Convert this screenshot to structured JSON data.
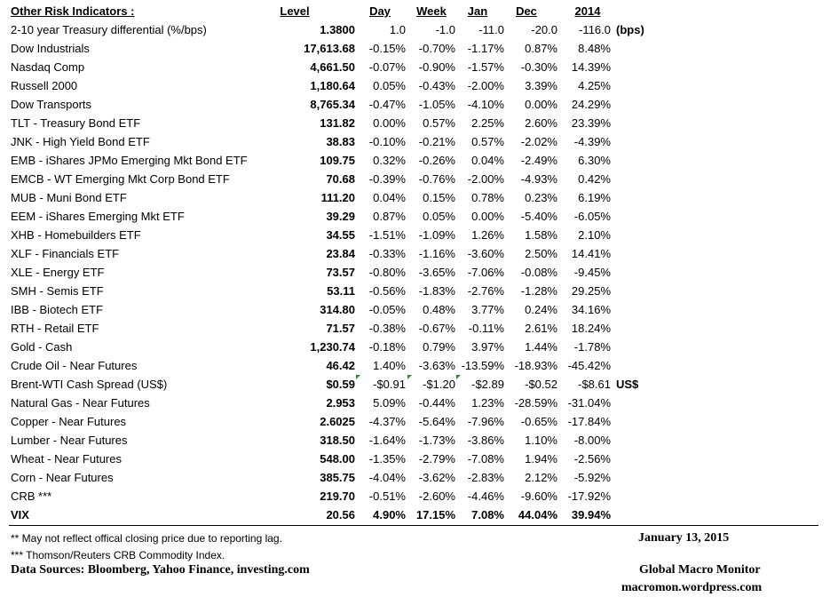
{
  "header": {
    "title": "Other Risk Indicators :",
    "columns": [
      "Level",
      "Day",
      "Week",
      "Jan",
      "Dec",
      "2014"
    ]
  },
  "table": {
    "rows": [
      {
        "name": "2-10 year Treasury differential (%/bps)",
        "cells": [
          "1.3800",
          "1.0",
          "-1.0",
          "-11.0",
          "-20.0",
          "-116.0"
        ],
        "unit": "(bps)"
      },
      {
        "name": "Dow Industrials",
        "cells": [
          "17,613.68",
          "-0.15%",
          "-0.70%",
          "-1.17%",
          "0.87%",
          "8.48%"
        ]
      },
      {
        "name": "Nasdaq Comp",
        "cells": [
          "4,661.50",
          "-0.07%",
          "-0.90%",
          "-1.57%",
          "-0.30%",
          "14.39%"
        ]
      },
      {
        "name": "Russell 2000",
        "cells": [
          "1,180.64",
          "0.05%",
          "-0.43%",
          "-2.00%",
          "3.39%",
          "4.25%"
        ]
      },
      {
        "name": "Dow Transports",
        "cells": [
          "8,765.34",
          "-0.47%",
          "-1.05%",
          "-4.10%",
          "0.00%",
          "24.29%"
        ]
      },
      {
        "name": "TLT - Treasury Bond ETF",
        "cells": [
          "131.82",
          "0.00%",
          "0.57%",
          "2.25%",
          "2.60%",
          "23.39%"
        ]
      },
      {
        "name": "JNK - High Yield Bond ETF",
        "cells": [
          "38.83",
          "-0.10%",
          "-0.21%",
          "0.57%",
          "-2.02%",
          "-4.39%"
        ]
      },
      {
        "name": "EMB - iShares JPMo Emerging Mkt Bond ETF",
        "cells": [
          "109.75",
          "0.32%",
          "-0.26%",
          "0.04%",
          "-2.49%",
          "6.30%"
        ]
      },
      {
        "name": "EMCB - WT Emerging Mkt Corp Bond ETF",
        "cells": [
          "70.68",
          "-0.39%",
          "-0.76%",
          "-2.00%",
          "-4.93%",
          "0.42%"
        ]
      },
      {
        "name": "MUB - Muni Bond ETF",
        "cells": [
          "111.20",
          "0.04%",
          "0.15%",
          "0.78%",
          "0.23%",
          "6.19%"
        ]
      },
      {
        "name": "EEM - iShares Emerging Mkt ETF",
        "cells": [
          "39.29",
          "0.87%",
          "0.05%",
          "0.00%",
          "-5.40%",
          "-6.05%"
        ]
      },
      {
        "name": "XHB - Homebuilders ETF",
        "cells": [
          "34.55",
          "-1.51%",
          "-1.09%",
          "1.26%",
          "1.58%",
          "2.10%"
        ]
      },
      {
        "name": "XLF - Financials ETF",
        "cells": [
          "23.84",
          "-0.33%",
          "-1.16%",
          "-3.60%",
          "2.50%",
          "14.41%"
        ]
      },
      {
        "name": "XLE - Energy ETF",
        "cells": [
          "73.57",
          "-0.80%",
          "-3.65%",
          "-7.06%",
          "-0.08%",
          "-9.45%"
        ]
      },
      {
        "name": "SMH - Semis ETF",
        "cells": [
          "53.11",
          "-0.56%",
          "-1.83%",
          "-2.76%",
          "-1.28%",
          "29.25%"
        ]
      },
      {
        "name": "IBB - Biotech ETF",
        "cells": [
          "314.80",
          "-0.05%",
          "0.48%",
          "3.77%",
          "0.24%",
          "34.16%"
        ]
      },
      {
        "name": "RTH - Retail ETF",
        "cells": [
          "71.57",
          "-0.38%",
          "-0.67%",
          "-0.11%",
          "2.61%",
          "18.24%"
        ]
      },
      {
        "name": "Gold - Cash",
        "cells": [
          "1,230.74",
          "-0.18%",
          "0.79%",
          "3.97%",
          "1.44%",
          "-1.78%"
        ]
      },
      {
        "name": "Crude Oil - Near Futures",
        "cells": [
          "46.42",
          "1.40%",
          "-3.63%",
          "-13.59%",
          "-18.93%",
          "-45.42%"
        ]
      },
      {
        "name": "Brent-WTI Cash Spread (US$)",
        "cells": [
          "$0.59",
          "-$0.91",
          "-$1.20",
          "-$2.89",
          "-$0.52",
          "-$8.61"
        ],
        "unit": "US$"
      },
      {
        "name": "Natural Gas - Near Futures",
        "cells": [
          "2.953",
          "5.09%",
          "-0.44%",
          "1.23%",
          "-28.59%",
          "-31.04%"
        ]
      },
      {
        "name": "Copper - Near Futures",
        "cells": [
          "2.6025",
          "-4.37%",
          "-5.64%",
          "-7.96%",
          "-0.65%",
          "-17.84%"
        ]
      },
      {
        "name": "Lumber - Near Futures",
        "cells": [
          "318.50",
          "-1.64%",
          "-1.73%",
          "-3.86%",
          "1.10%",
          "-8.00%"
        ]
      },
      {
        "name": "Wheat - Near Futures",
        "cells": [
          "548.00",
          "-1.35%",
          "-2.79%",
          "-7.08%",
          "1.94%",
          "-2.56%"
        ]
      },
      {
        "name": "Corn - Near Futures",
        "cells": [
          "385.75",
          "-4.04%",
          "-3.62%",
          "-2.83%",
          "2.12%",
          "-5.92%"
        ]
      },
      {
        "name": "CRB ***",
        "cells": [
          "219.70",
          "-0.51%",
          "-2.60%",
          "-4.46%",
          "-9.60%",
          "-17.92%"
        ]
      },
      {
        "name": "VIX",
        "cells": [
          "20.56",
          "4.90%",
          "17.15%",
          "7.08%",
          "44.04%",
          "39.94%"
        ]
      }
    ]
  },
  "footer": {
    "note1": "**  May not reflect offical closing price due to reporting lag.",
    "note2": "*** Thomson/Reuters CRB Commodity Index.",
    "sources": "Data Sources:  Bloomberg,  Yahoo Finance, investing.com",
    "date": "January 13, 2015",
    "brand": "Global Macro Monitor",
    "site": "macromon.wordpress.com"
  }
}
